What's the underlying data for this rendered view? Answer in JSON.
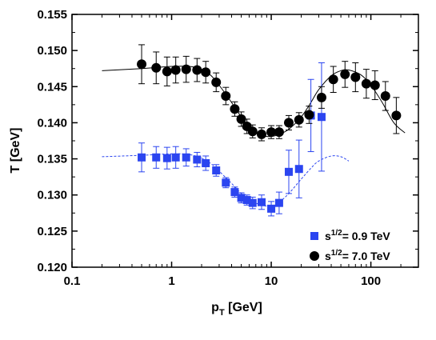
{
  "chart_data": {
    "type": "scatter",
    "xlabel_main": "p",
    "xlabel_sub": "T",
    "xlabel_unit": " [GeV]",
    "ylabel": "T [GeV]",
    "x_scale": "log",
    "xlim": [
      0.1,
      300
    ],
    "ylim": [
      0.12,
      0.155
    ],
    "x_ticks": [
      0.1,
      1,
      10,
      100
    ],
    "x_tick_labels": [
      "0.1",
      "1",
      "10",
      "100"
    ],
    "y_ticks": [
      0.12,
      0.125,
      0.13,
      0.135,
      0.14,
      0.145,
      0.15,
      0.155
    ],
    "y_tick_labels": [
      "0.120",
      "0.125",
      "0.130",
      "0.135",
      "0.140",
      "0.145",
      "0.150",
      "0.155"
    ],
    "legend_position": "bottom-right",
    "series": [
      {
        "name": "s1/2= 0.9 TeV",
        "label_base": "s",
        "label_sup": "1/2",
        "label_rest": "= 0.9 TeV",
        "marker": "square",
        "color": "#2B45F0",
        "points": [
          {
            "x": 0.5,
            "y": 0.1352,
            "err": 0.002
          },
          {
            "x": 0.7,
            "y": 0.1352,
            "err": 0.0015
          },
          {
            "x": 0.9,
            "y": 0.1351,
            "err": 0.0015
          },
          {
            "x": 1.1,
            "y": 0.1352,
            "err": 0.0015
          },
          {
            "x": 1.4,
            "y": 0.1352,
            "err": 0.0012
          },
          {
            "x": 1.8,
            "y": 0.1349,
            "err": 0.001
          },
          {
            "x": 2.2,
            "y": 0.1344,
            "err": 0.001
          },
          {
            "x": 2.8,
            "y": 0.1334,
            "err": 0.0008
          },
          {
            "x": 3.5,
            "y": 0.1317,
            "err": 0.0007
          },
          {
            "x": 4.3,
            "y": 0.1304,
            "err": 0.0007
          },
          {
            "x": 5.0,
            "y": 0.1296,
            "err": 0.0007
          },
          {
            "x": 5.7,
            "y": 0.1293,
            "err": 0.0007
          },
          {
            "x": 6.5,
            "y": 0.1289,
            "err": 0.0008
          },
          {
            "x": 8.0,
            "y": 0.129,
            "err": 0.001
          },
          {
            "x": 10.0,
            "y": 0.1281,
            "err": 0.001
          },
          {
            "x": 12.0,
            "y": 0.1289,
            "err": 0.0015
          },
          {
            "x": 15.0,
            "y": 0.1332,
            "err": 0.003
          },
          {
            "x": 19.0,
            "y": 0.1336,
            "err": 0.004
          },
          {
            "x": 25.0,
            "y": 0.141,
            "err": 0.005
          },
          {
            "x": 32.0,
            "y": 0.1408,
            "err": 0.0075
          }
        ]
      },
      {
        "name": "s1/2= 7.0 TeV",
        "label_base": "s",
        "label_sup": "1/2",
        "label_rest": "= 7.0 TeV",
        "marker": "circle",
        "color": "#000000",
        "points": [
          {
            "x": 0.5,
            "y": 0.1481,
            "err": 0.0027
          },
          {
            "x": 0.7,
            "y": 0.1476,
            "err": 0.0022
          },
          {
            "x": 0.9,
            "y": 0.1471,
            "err": 0.002
          },
          {
            "x": 1.1,
            "y": 0.1473,
            "err": 0.0018
          },
          {
            "x": 1.4,
            "y": 0.1474,
            "err": 0.0018
          },
          {
            "x": 1.8,
            "y": 0.1473,
            "err": 0.0016
          },
          {
            "x": 2.2,
            "y": 0.147,
            "err": 0.0015
          },
          {
            "x": 2.8,
            "y": 0.1456,
            "err": 0.0013
          },
          {
            "x": 3.5,
            "y": 0.1437,
            "err": 0.0012
          },
          {
            "x": 4.3,
            "y": 0.1419,
            "err": 0.001
          },
          {
            "x": 5.0,
            "y": 0.1405,
            "err": 0.001
          },
          {
            "x": 5.7,
            "y": 0.1395,
            "err": 0.001
          },
          {
            "x": 6.5,
            "y": 0.1388,
            "err": 0.0009
          },
          {
            "x": 8.0,
            "y": 0.1384,
            "err": 0.0009
          },
          {
            "x": 10.0,
            "y": 0.1387,
            "err": 0.0009
          },
          {
            "x": 12.0,
            "y": 0.1387,
            "err": 0.0009
          },
          {
            "x": 15.0,
            "y": 0.14,
            "err": 0.001
          },
          {
            "x": 19.0,
            "y": 0.1404,
            "err": 0.001
          },
          {
            "x": 24.0,
            "y": 0.1411,
            "err": 0.0012
          },
          {
            "x": 32.0,
            "y": 0.1435,
            "err": 0.0015
          },
          {
            "x": 42.0,
            "y": 0.146,
            "err": 0.0018
          },
          {
            "x": 55.0,
            "y": 0.1467,
            "err": 0.0018
          },
          {
            "x": 70.0,
            "y": 0.1463,
            "err": 0.002
          },
          {
            "x": 90.0,
            "y": 0.1454,
            "err": 0.002
          },
          {
            "x": 110.0,
            "y": 0.1452,
            "err": 0.002
          },
          {
            "x": 140.0,
            "y": 0.1437,
            "err": 0.002
          },
          {
            "x": 180.0,
            "y": 0.141,
            "err": 0.0025
          }
        ]
      }
    ],
    "fits": [
      {
        "series": "s1/2= 7.0 TeV",
        "style": "solid",
        "color": "#000000",
        "points": [
          [
            0.2,
            0.1472
          ],
          [
            0.5,
            0.1475
          ],
          [
            1.0,
            0.1478
          ],
          [
            1.5,
            0.1478
          ],
          [
            2.0,
            0.1474
          ],
          [
            2.5,
            0.1465
          ],
          [
            3.0,
            0.1452
          ],
          [
            4.0,
            0.1428
          ],
          [
            5.0,
            0.1408
          ],
          [
            6.0,
            0.1394
          ],
          [
            7.0,
            0.1386
          ],
          [
            8.0,
            0.1382
          ],
          [
            10.0,
            0.1381
          ],
          [
            12.0,
            0.1384
          ],
          [
            15.0,
            0.1391
          ],
          [
            20.0,
            0.1408
          ],
          [
            25.0,
            0.1428
          ],
          [
            30.0,
            0.1446
          ],
          [
            40.0,
            0.1465
          ],
          [
            50.0,
            0.1472
          ],
          [
            60.0,
            0.1473
          ],
          [
            80.0,
            0.1466
          ],
          [
            100.0,
            0.1452
          ],
          [
            130.0,
            0.1428
          ],
          [
            170.0,
            0.14
          ],
          [
            220.0,
            0.1386
          ]
        ]
      },
      {
        "series": "s1/2= 0.9 TeV",
        "style": "dashed",
        "color": "#2B45F0",
        "points": [
          [
            0.2,
            0.1353
          ],
          [
            0.5,
            0.1355
          ],
          [
            1.0,
            0.1357
          ],
          [
            1.5,
            0.1356
          ],
          [
            2.0,
            0.1351
          ],
          [
            2.5,
            0.1343
          ],
          [
            3.0,
            0.1333
          ],
          [
            4.0,
            0.1316
          ],
          [
            5.0,
            0.1302
          ],
          [
            6.0,
            0.1293
          ],
          [
            8.0,
            0.1286
          ],
          [
            10.0,
            0.1285
          ],
          [
            12.0,
            0.129
          ],
          [
            15.0,
            0.1302
          ],
          [
            20.0,
            0.1322
          ],
          [
            25.0,
            0.1337
          ],
          [
            30.0,
            0.1347
          ],
          [
            40.0,
            0.1354
          ],
          [
            50.0,
            0.1353
          ],
          [
            60.0,
            0.1347
          ]
        ]
      }
    ]
  }
}
